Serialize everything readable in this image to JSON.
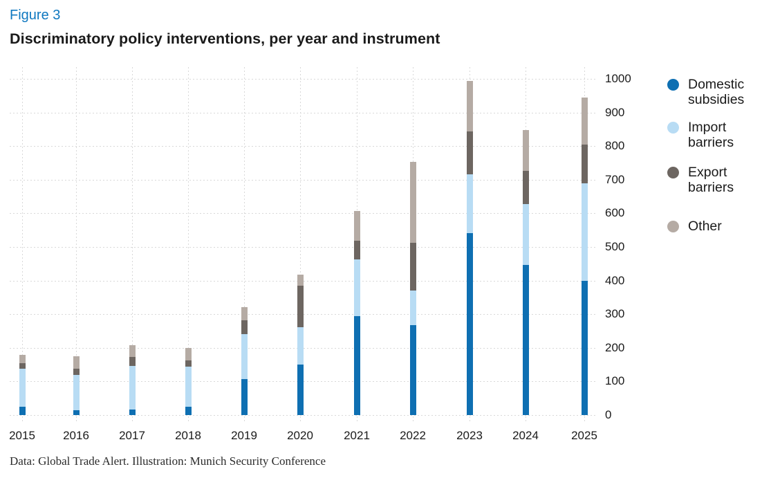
{
  "header": {
    "figure_label": "Figure 3",
    "title": "Discriminatory policy interventions, per year and instrument",
    "figure_label_color": "#0f78c0"
  },
  "chart_data": {
    "type": "bar",
    "stacked": true,
    "title": "Discriminatory policy interventions, per year and instrument",
    "categories": [
      "2015",
      "2016",
      "2017",
      "2018",
      "2019",
      "2020",
      "2021",
      "2022",
      "2023",
      "2024",
      "2025"
    ],
    "series": [
      {
        "name": "Domestic subsidies",
        "legend_lines": [
          "Domestic",
          "subsidies"
        ],
        "color": "#0e6fb2",
        "values": [
          25,
          15,
          17,
          24,
          107,
          151,
          295,
          267,
          542,
          447,
          400
        ]
      },
      {
        "name": "Import barriers",
        "legend_lines": [
          "Import",
          "barriers"
        ],
        "color": "#b8dcf4",
        "values": [
          112,
          105,
          129,
          121,
          134,
          111,
          168,
          103,
          175,
          181,
          289
        ]
      },
      {
        "name": "Export barriers",
        "legend_lines": [
          "Export",
          "barriers"
        ],
        "color": "#6d6661",
        "values": [
          18,
          17,
          26,
          18,
          41,
          122,
          55,
          143,
          127,
          99,
          116
        ]
      },
      {
        "name": "Other",
        "legend_lines": [
          "Other"
        ],
        "color": "#b5aba4",
        "values": [
          25,
          38,
          35,
          37,
          40,
          33,
          90,
          240,
          150,
          120,
          139
        ]
      }
    ],
    "xlabel": "",
    "ylabel": "",
    "ylim": [
      0,
      1000
    ],
    "yticks": [
      0,
      100,
      200,
      300,
      400,
      500,
      600,
      700,
      800,
      900,
      1000
    ],
    "y_axis_position": "right",
    "grid": "dashed horizontal and vertical",
    "legend_position": "right",
    "gridline_color": "#d8d8d8"
  },
  "footer": {
    "credit": "Data: Global Trade Alert. Illustration: Munich Security Conference"
  }
}
